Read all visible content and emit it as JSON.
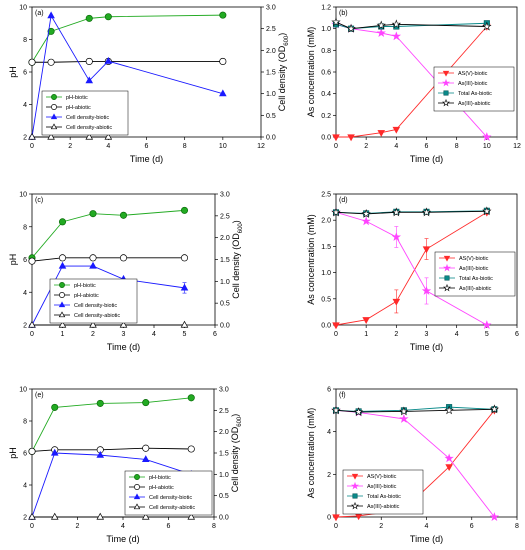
{
  "colors": {
    "ph_biotic": "#22aa22",
    "cell_biotic": "#1a1aff",
    "asv_biotic": "#ff2a2a",
    "asiii_biotic": "#ff44ff",
    "total_as_biotic": "#0a8a8a",
    "abiotic": "#000000"
  },
  "chart_data": [
    {
      "type": "line",
      "panel_label": "(a)",
      "xlabel": "Time (d)",
      "ylabel": "pH",
      "y2label_main": "Cell density (OD",
      "y2label_sub": "600",
      "y2label_end": ")",
      "xlim": [
        0,
        12
      ],
      "ylim": [
        2,
        10
      ],
      "y2lim": [
        0,
        3.0
      ],
      "x_ticks": [
        "0",
        "2",
        "4",
        "6",
        "8",
        "10",
        "12"
      ],
      "y_ticks": [
        "2",
        "4",
        "6",
        "8",
        "10"
      ],
      "y2_ticks": [
        "0.0",
        "0.5",
        "1.0",
        "1.5",
        "2.0",
        "2.5",
        "3.0"
      ],
      "legend_position": "bottom-left",
      "series": [
        {
          "name": "pH-biotic",
          "axis": "left",
          "x": [
            0,
            1,
            3,
            4,
            10
          ],
          "y": [
            6.6,
            8.5,
            9.3,
            9.4,
            9.5
          ],
          "marker": "circle",
          "filled": true,
          "color_key": "ph_biotic"
        },
        {
          "name": "pH-abiotic",
          "axis": "left",
          "x": [
            0,
            1,
            3,
            4,
            10
          ],
          "y": [
            6.6,
            6.6,
            6.65,
            6.65,
            6.65
          ],
          "marker": "circle",
          "filled": false,
          "color_key": "abiotic"
        },
        {
          "name": "Cell density-biotic",
          "axis": "right",
          "x": [
            0,
            1,
            3,
            4,
            10
          ],
          "y": [
            0.0,
            2.8,
            1.3,
            1.75,
            1.0
          ],
          "marker": "triangle-up",
          "filled": true,
          "color_key": "cell_biotic"
        },
        {
          "name": "Cell density-abiotic",
          "axis": "right",
          "x": [
            0,
            1,
            3,
            4
          ],
          "y": [
            0.0,
            0.0,
            0.0,
            0.0
          ],
          "marker": "triangle-up",
          "filled": false,
          "color_key": "abiotic"
        }
      ]
    },
    {
      "type": "line",
      "panel_label": "(b)",
      "xlabel": "Time (d)",
      "ylabel": "As concentration (mM)",
      "xlim": [
        0,
        12
      ],
      "ylim": [
        0,
        1.2
      ],
      "x_ticks": [
        "0",
        "2",
        "4",
        "6",
        "8",
        "10",
        "12"
      ],
      "y_ticks": [
        "0.0",
        "0.2",
        "0.4",
        "0.6",
        "0.8",
        "1.0",
        "1.2"
      ],
      "legend_position": "right",
      "series": [
        {
          "name": "AS(V)-biotic",
          "axis": "left",
          "x": [
            0,
            1,
            3,
            4,
            10
          ],
          "y": [
            0.0,
            0.0,
            0.04,
            0.07,
            1.02
          ],
          "marker": "triangle-down",
          "filled": true,
          "color_key": "asv_biotic"
        },
        {
          "name": "As(III)-biotic",
          "axis": "left",
          "x": [
            0,
            1,
            3,
            4,
            10
          ],
          "y": [
            1.04,
            1.0,
            0.96,
            0.93,
            0.0
          ],
          "marker": "star",
          "filled": true,
          "color_key": "asiii_biotic"
        },
        {
          "name": "Total As-biotic",
          "axis": "left",
          "x": [
            0,
            1,
            3,
            4,
            10
          ],
          "y": [
            1.04,
            1.0,
            1.02,
            1.02,
            1.05
          ],
          "marker": "square",
          "filled": true,
          "color_key": "total_as_biotic"
        },
        {
          "name": "As(III)-abiotic",
          "axis": "left",
          "x": [
            0,
            1,
            3,
            4,
            10
          ],
          "y": [
            1.06,
            1.0,
            1.03,
            1.04,
            1.02
          ],
          "marker": "star",
          "filled": false,
          "color_key": "abiotic"
        }
      ]
    },
    {
      "type": "line",
      "panel_label": "(c)",
      "xlabel": "Time (d)",
      "ylabel": "pH",
      "y2label_main": "Cell density (OD",
      "y2label_sub": "600",
      "y2label_end": ")",
      "xlim": [
        0,
        6
      ],
      "ylim": [
        2,
        10
      ],
      "y2lim": [
        0,
        3.0
      ],
      "x_ticks": [
        "0",
        "1",
        "2",
        "3",
        "4",
        "5",
        "6"
      ],
      "y_ticks": [
        "2",
        "4",
        "6",
        "8",
        "10"
      ],
      "y2_ticks": [
        "0.0",
        "0.5",
        "1.0",
        "1.5",
        "2.0",
        "2.5",
        "3.0"
      ],
      "legend_position": "bottom-left",
      "series": [
        {
          "name": "pH-biotic",
          "axis": "left",
          "x": [
            0,
            1,
            2,
            3,
            5
          ],
          "y": [
            6.1,
            8.3,
            8.8,
            8.7,
            9.0
          ],
          "marker": "circle",
          "filled": true,
          "color_key": "ph_biotic"
        },
        {
          "name": "pH-abiotic",
          "axis": "left",
          "x": [
            0,
            1,
            2,
            3,
            5
          ],
          "y": [
            5.9,
            6.1,
            6.1,
            6.1,
            6.1
          ],
          "marker": "circle",
          "filled": false,
          "color_key": "abiotic"
        },
        {
          "name": "Cell density-biotic",
          "axis": "right",
          "x": [
            0,
            1,
            2,
            3,
            5
          ],
          "y": [
            0.0,
            1.35,
            1.35,
            1.05,
            0.85
          ],
          "err": [
            0,
            0,
            0,
            0,
            0.12
          ],
          "marker": "triangle-up",
          "filled": true,
          "color_key": "cell_biotic"
        },
        {
          "name": "Cell density-abiotic",
          "axis": "right",
          "x": [
            0,
            1,
            2,
            3,
            5
          ],
          "y": [
            0.0,
            0.0,
            0.0,
            0.0,
            0.0
          ],
          "marker": "triangle-up",
          "filled": false,
          "color_key": "abiotic"
        }
      ]
    },
    {
      "type": "line",
      "panel_label": "(d)",
      "xlabel": "Time (d)",
      "ylabel": "As concentration (mM)",
      "xlim": [
        0,
        6
      ],
      "ylim": [
        0,
        2.5
      ],
      "x_ticks": [
        "0",
        "1",
        "2",
        "3",
        "4",
        "5",
        "6"
      ],
      "y_ticks": [
        "0.0",
        "0.5",
        "1.0",
        "1.5",
        "2.0",
        "2.5"
      ],
      "legend_position": "right",
      "series": [
        {
          "name": "AS(V)-biotic",
          "axis": "left",
          "x": [
            0,
            1,
            2,
            3,
            5
          ],
          "y": [
            0.0,
            0.1,
            0.45,
            1.45,
            2.15
          ],
          "err": [
            0,
            0,
            0.22,
            0.2,
            0
          ],
          "marker": "triangle-down",
          "filled": true,
          "color_key": "asv_biotic"
        },
        {
          "name": "As(III)-biotic",
          "axis": "left",
          "x": [
            0,
            1,
            2,
            3,
            5
          ],
          "y": [
            2.15,
            1.98,
            1.68,
            0.65,
            0.0
          ],
          "err": [
            0,
            0,
            0.2,
            0.25,
            0
          ],
          "marker": "star",
          "filled": true,
          "color_key": "asiii_biotic"
        },
        {
          "name": "Total As-biotic",
          "axis": "left",
          "x": [
            0,
            1,
            2,
            3,
            5
          ],
          "y": [
            2.15,
            2.13,
            2.16,
            2.16,
            2.18
          ],
          "marker": "square",
          "filled": true,
          "color_key": "total_as_biotic"
        },
        {
          "name": "As(III)-abiotic",
          "axis": "left",
          "x": [
            0,
            1,
            2,
            3,
            5
          ],
          "y": [
            2.15,
            2.12,
            2.15,
            2.15,
            2.17
          ],
          "marker": "star",
          "filled": false,
          "color_key": "abiotic"
        }
      ]
    },
    {
      "type": "line",
      "panel_label": "(e)",
      "xlabel": "Time (d)",
      "ylabel": "pH",
      "y2label_main": "Cell density (OD",
      "y2label_sub": "600",
      "y2label_end": ")",
      "xlim": [
        0,
        8
      ],
      "ylim": [
        2,
        10
      ],
      "y2lim": [
        0,
        3.0
      ],
      "x_ticks": [
        "0",
        "2",
        "4",
        "6",
        "8"
      ],
      "y_ticks": [
        "2",
        "4",
        "6",
        "8",
        "10"
      ],
      "y2_ticks": [
        "0.0",
        "0.5",
        "1.0",
        "1.5",
        "2.0",
        "2.5",
        "3.0"
      ],
      "legend_position": "bottom-right",
      "series": [
        {
          "name": "pH-biotic",
          "axis": "left",
          "x": [
            0,
            1,
            3,
            5,
            7
          ],
          "y": [
            6.1,
            8.85,
            9.1,
            9.15,
            9.45
          ],
          "marker": "circle",
          "filled": true,
          "color_key": "ph_biotic"
        },
        {
          "name": "pH-abiotic",
          "axis": "left",
          "x": [
            0,
            1,
            3,
            5,
            7
          ],
          "y": [
            6.1,
            6.2,
            6.2,
            6.3,
            6.25
          ],
          "marker": "circle",
          "filled": false,
          "color_key": "abiotic"
        },
        {
          "name": "Cell density-biotic",
          "axis": "right",
          "x": [
            0,
            1,
            3,
            5,
            7
          ],
          "y": [
            0.0,
            1.5,
            1.45,
            1.35,
            1.0
          ],
          "marker": "triangle-up",
          "filled": true,
          "color_key": "cell_biotic"
        },
        {
          "name": "Cell density-abiotic",
          "axis": "right",
          "x": [
            0,
            1,
            3,
            5,
            7
          ],
          "y": [
            0.0,
            0.0,
            0.0,
            0.0,
            0.0
          ],
          "marker": "triangle-up",
          "filled": false,
          "color_key": "abiotic"
        }
      ]
    },
    {
      "type": "line",
      "panel_label": "(f)",
      "xlabel": "Time (d)",
      "ylabel": "As concentration (mM)",
      "xlim": [
        0,
        8
      ],
      "ylim": [
        0,
        6
      ],
      "x_ticks": [
        "0",
        "2",
        "4",
        "6",
        "8"
      ],
      "y_ticks": [
        "0",
        "2",
        "4",
        "6"
      ],
      "legend_position": "bottom-left",
      "series": [
        {
          "name": "AS(V)-biotic",
          "axis": "left",
          "x": [
            0,
            1,
            3,
            5,
            7
          ],
          "y": [
            0.0,
            0.05,
            0.35,
            2.35,
            5.0
          ],
          "marker": "triangle-down",
          "filled": true,
          "color_key": "asv_biotic"
        },
        {
          "name": "As(III)-biotic",
          "axis": "left",
          "x": [
            0,
            1,
            3,
            5,
            7
          ],
          "y": [
            5.0,
            4.9,
            4.6,
            2.75,
            0.0
          ],
          "marker": "star",
          "filled": true,
          "color_key": "asiii_biotic"
        },
        {
          "name": "Total As-biotic",
          "axis": "left",
          "x": [
            0,
            1,
            3,
            5,
            7
          ],
          "y": [
            5.0,
            4.95,
            5.0,
            5.15,
            5.05
          ],
          "marker": "square",
          "filled": true,
          "color_key": "total_as_biotic"
        },
        {
          "name": "As(III)-abiotic",
          "axis": "left",
          "x": [
            0,
            1,
            3,
            5,
            7
          ],
          "y": [
            5.0,
            4.92,
            4.95,
            5.0,
            5.05
          ],
          "marker": "star",
          "filled": false,
          "color_key": "abiotic"
        }
      ]
    }
  ]
}
